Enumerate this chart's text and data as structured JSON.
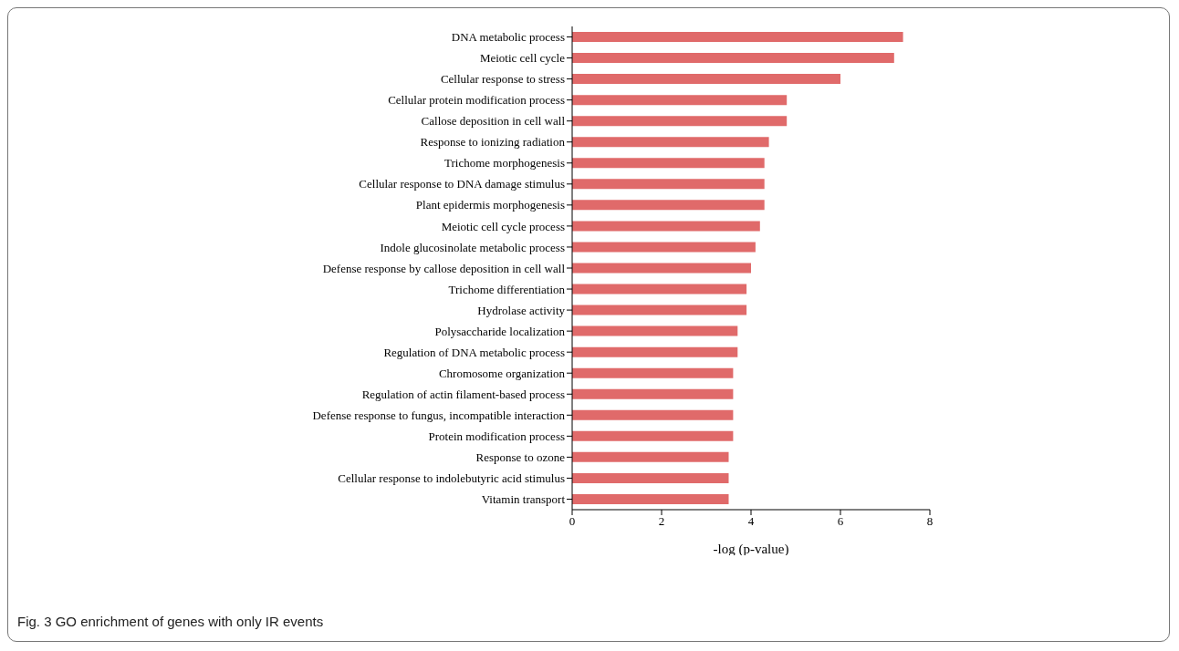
{
  "chart_data": {
    "type": "bar",
    "orientation": "horizontal",
    "xlabel": "-log (p-value)",
    "annotations": [
      "Fig. 3 GO enrichment of genes with only IR events"
    ],
    "categories": [
      "DNA metabolic process",
      "Meiotic cell cycle",
      "Cellular response to stress",
      "Cellular protein modification process",
      "Callose deposition in cell wall",
      "Response to ionizing radiation",
      "Trichome morphogenesis",
      "Cellular response to DNA damage stimulus",
      "Plant epidermis morphogenesis",
      "Meiotic cell cycle process",
      "Indole glucosinolate metabolic process",
      "Defense response by callose deposition in cell wall",
      "Trichome differentiation",
      "Hydrolase activity",
      "Polysaccharide localization",
      "Regulation of DNA metabolic process",
      "Chromosome organization",
      "Regulation of actin filament-based process",
      "Defense response to fungus, incompatible interaction",
      "Protein modification process",
      "Response to ozone",
      "Cellular response to indolebutyric acid stimulus",
      "Vitamin transport"
    ],
    "values": [
      7.4,
      7.2,
      6.0,
      4.8,
      4.8,
      4.4,
      4.3,
      4.3,
      4.3,
      4.2,
      4.1,
      4.0,
      3.9,
      3.9,
      3.7,
      3.7,
      3.6,
      3.6,
      3.6,
      3.6,
      3.5,
      3.5,
      3.5
    ],
    "color": "#e06a6a",
    "xlim": [
      0,
      8
    ],
    "xticks": [
      0,
      2,
      4,
      6,
      8
    ],
    "grid": false,
    "legend": false
  }
}
